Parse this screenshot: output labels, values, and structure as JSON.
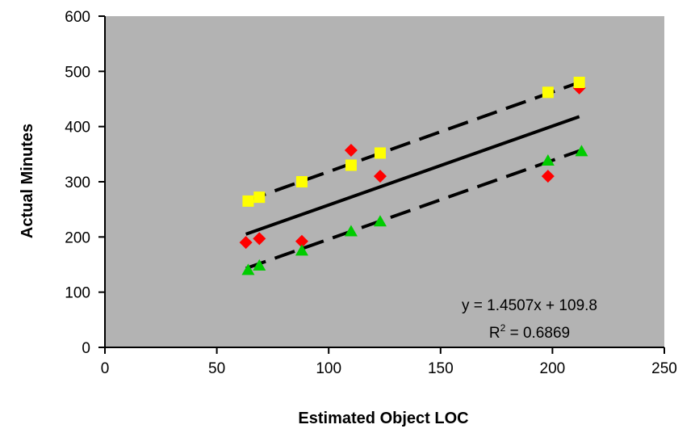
{
  "chart_data": {
    "type": "scatter",
    "xlabel": "Estimated Object LOC",
    "ylabel": "Actual Minutes",
    "xlim": [
      0,
      250
    ],
    "ylim": [
      0,
      600
    ],
    "xticks": [
      0,
      50,
      100,
      150,
      200,
      250
    ],
    "yticks": [
      0,
      100,
      200,
      300,
      400,
      500,
      600
    ],
    "xtick_labels": [
      "0",
      "50",
      "100",
      "150",
      "200",
      "250"
    ],
    "ytick_labels": [
      "0",
      "100",
      "200",
      "300",
      "400",
      "500",
      "600"
    ],
    "grid": false,
    "plot_background": "#b3b3b3",
    "series": [
      {
        "marker": "diamond",
        "color": "#ff0000",
        "x": [
          63,
          69,
          88,
          110,
          123,
          198,
          212
        ],
        "y": [
          190,
          197,
          192,
          357,
          310,
          310,
          470
        ]
      },
      {
        "marker": "square",
        "color": "#ffff00",
        "x": [
          64,
          69,
          88,
          110,
          123,
          198,
          212
        ],
        "y": [
          265,
          272,
          300,
          330,
          352,
          462,
          480
        ]
      },
      {
        "marker": "triangle",
        "color": "#00cc00",
        "x": [
          64,
          69,
          88,
          110,
          123,
          198,
          213
        ],
        "y": [
          140,
          148,
          175,
          210,
          228,
          338,
          355
        ]
      }
    ],
    "lines": [
      {
        "style": "solid",
        "x": [
          63,
          212
        ],
        "y": [
          205,
          418
        ]
      },
      {
        "style": "dashed",
        "x": [
          63,
          212
        ],
        "y": [
          265,
          480
        ]
      },
      {
        "style": "dashed",
        "x": [
          63,
          212
        ],
        "y": [
          143,
          356
        ]
      }
    ],
    "annotations": {
      "equation": "y = 1.4507x + 109.8",
      "r2_prefix": "R",
      "r2_sup": "2",
      "r2_value": " = 0.6869"
    }
  }
}
